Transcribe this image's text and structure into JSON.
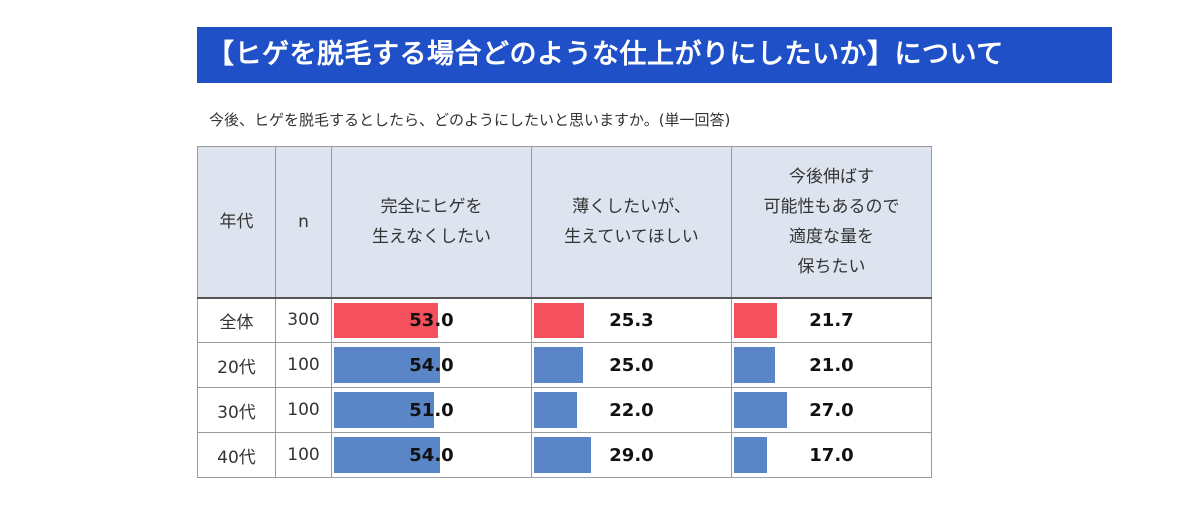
{
  "title": "【ヒゲを脱毛する場合どのような仕上がりにしたいか】について",
  "question": "今後、ヒゲを脱毛するとしたら、どのようにしたいと思いますか。(単一回答)",
  "colors": {
    "highlight": "#f5505e",
    "bar": "#5a86c8",
    "header_bg": "#dde4ef",
    "title_bg": "#1f50c8"
  },
  "chart_data": {
    "type": "table",
    "columns": {
      "age": "年代",
      "n": "n"
    },
    "categories": [
      "完全にヒゲを\n生えなくしたい",
      "薄くしたいが、\n生えていてほしい",
      "今後伸ばす\n可能性もあるので\n適度な量を\n保ちたい"
    ],
    "rows": [
      {
        "label": "全体",
        "n": "300",
        "values": [
          53.0,
          25.3,
          21.7
        ],
        "display": [
          "53.0",
          "25.3",
          "21.7"
        ]
      },
      {
        "label": "20代",
        "n": "100",
        "values": [
          54.0,
          25.0,
          21.0
        ],
        "display": [
          "54.0",
          "25.0",
          "21.0"
        ]
      },
      {
        "label": "30代",
        "n": "100",
        "values": [
          51.0,
          22.0,
          27.0
        ],
        "display": [
          "51.0",
          "22.0",
          "27.0"
        ]
      },
      {
        "label": "40代",
        "n": "100",
        "values": [
          54.0,
          29.0,
          17.0
        ],
        "display": [
          "54.0",
          "29.0",
          "17.0"
        ]
      }
    ],
    "unit": "%",
    "scale_max": 100
  }
}
